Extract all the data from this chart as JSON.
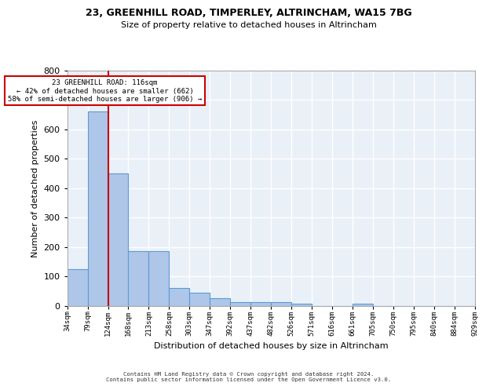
{
  "title1": "23, GREENHILL ROAD, TIMPERLEY, ALTRINCHAM, WA15 7BG",
  "title2": "Size of property relative to detached houses in Altrincham",
  "xlabel": "Distribution of detached houses by size in Altrincham",
  "ylabel": "Number of detached properties",
  "bin_labels": [
    "34sqm",
    "79sqm",
    "124sqm",
    "168sqm",
    "213sqm",
    "258sqm",
    "303sqm",
    "347sqm",
    "392sqm",
    "437sqm",
    "482sqm",
    "526sqm",
    "571sqm",
    "616sqm",
    "661sqm",
    "705sqm",
    "750sqm",
    "795sqm",
    "840sqm",
    "884sqm",
    "929sqm"
  ],
  "bar_heights": [
    125,
    660,
    450,
    185,
    185,
    60,
    43,
    25,
    13,
    13,
    11,
    8,
    0,
    0,
    8,
    0,
    0,
    0,
    0,
    0
  ],
  "bar_color": "#aec6e8",
  "bar_edge_color": "#5b9bd5",
  "background_color": "#eaf0f8",
  "grid_color": "#ffffff",
  "red_line_bin": 2,
  "red_line_color": "#cc0000",
  "annotation_text": "23 GREENHILL ROAD: 116sqm\n← 42% of detached houses are smaller (662)\n58% of semi-detached houses are larger (906) →",
  "annotation_box_color": "#ffffff",
  "annotation_box_edge": "#cc0000",
  "ylim": [
    0,
    800
  ],
  "yticks": [
    0,
    100,
    200,
    300,
    400,
    500,
    600,
    700,
    800
  ],
  "footer": "Contains HM Land Registry data © Crown copyright and database right 2024.\nContains public sector information licensed under the Open Government Licence v3.0."
}
